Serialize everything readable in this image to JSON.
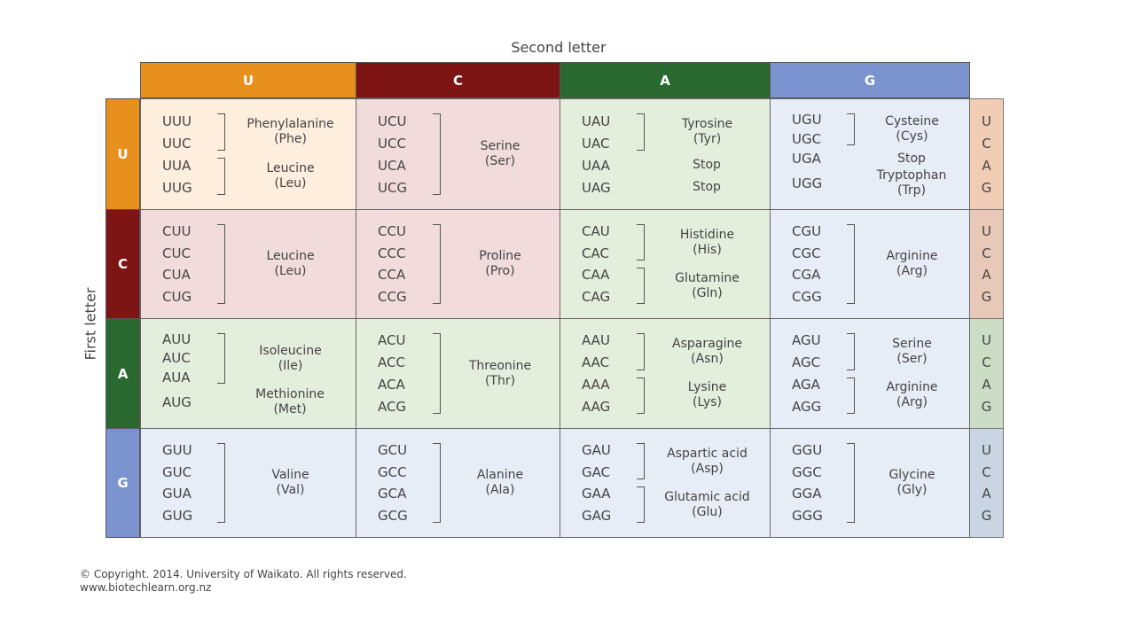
{
  "title_second": "Second letter",
  "title_first": "First letter",
  "bases": [
    "U",
    "C",
    "A",
    "G"
  ],
  "colors": {
    "header": [
      "#e8901e",
      "#7e1515",
      "#2a6a30",
      "#7b93cf"
    ],
    "cell": [
      "#fdeedd",
      "#f1dcdb",
      "#e4eedd",
      "#e7edf7"
    ],
    "third": [
      "#f2cdb5",
      "#e8c9b7",
      "#cbddc4",
      "#c9d5e3"
    ]
  },
  "cells": [
    [
      [
        {
          "codons": [
            "UUU",
            "UUC"
          ],
          "name": "Phenylalanine",
          "abbr": "(Phe)"
        },
        {
          "codons": [
            "UUA",
            "UUG"
          ],
          "name": "Leucine",
          "abbr": "(Leu)"
        }
      ],
      [
        {
          "codons": [
            "UCU",
            "UCC",
            "UCA",
            "UCG"
          ],
          "name": "Serine",
          "abbr": "(Ser)"
        }
      ],
      [
        {
          "codons": [
            "UAU",
            "UAC"
          ],
          "name": "Tyrosine",
          "abbr": "(Tyr)"
        },
        {
          "codons": [
            "UAA"
          ],
          "name": "Stop",
          "abbr": ""
        },
        {
          "codons": [
            "UAG"
          ],
          "name": "Stop",
          "abbr": ""
        }
      ],
      [
        {
          "codons": [
            "UGU",
            "UGC"
          ],
          "name": "Cysteine",
          "abbr": "(Cys)"
        },
        {
          "codons": [
            "UGA"
          ],
          "name": "Stop",
          "abbr": ""
        },
        {
          "codons": [
            "UGG"
          ],
          "name": "Tryptophan",
          "abbr": "(Trp)"
        }
      ]
    ],
    [
      [
        {
          "codons": [
            "CUU",
            "CUC",
            "CUA",
            "CUG"
          ],
          "name": "Leucine",
          "abbr": "(Leu)"
        }
      ],
      [
        {
          "codons": [
            "CCU",
            "CCC",
            "CCA",
            "CCG"
          ],
          "name": "Proline",
          "abbr": "(Pro)"
        }
      ],
      [
        {
          "codons": [
            "CAU",
            "CAC"
          ],
          "name": "Histidine",
          "abbr": "(His)"
        },
        {
          "codons": [
            "CAA",
            "CAG"
          ],
          "name": "Glutamine",
          "abbr": "(Gln)"
        }
      ],
      [
        {
          "codons": [
            "CGU",
            "CGC",
            "CGA",
            "CGG"
          ],
          "name": "Arginine",
          "abbr": "(Arg)"
        }
      ]
    ],
    [
      [
        {
          "codons": [
            "AUU",
            "AUC",
            "AUA"
          ],
          "name": "Isoleucine",
          "abbr": "(Ile)"
        },
        {
          "codons": [
            "AUG"
          ],
          "name": "Methionine",
          "abbr": "(Met)"
        }
      ],
      [
        {
          "codons": [
            "ACU",
            "ACC",
            "ACA",
            "ACG"
          ],
          "name": "Threonine",
          "abbr": "(Thr)"
        }
      ],
      [
        {
          "codons": [
            "AAU",
            "AAC"
          ],
          "name": "Asparagine",
          "abbr": "(Asn)"
        },
        {
          "codons": [
            "AAA",
            "AAG"
          ],
          "name": "Lysine",
          "abbr": "(Lys)"
        }
      ],
      [
        {
          "codons": [
            "AGU",
            "AGC"
          ],
          "name": "Serine",
          "abbr": "(Ser)"
        },
        {
          "codons": [
            "AGA",
            "AGG"
          ],
          "name": "Arginine",
          "abbr": "(Arg)"
        }
      ]
    ],
    [
      [
        {
          "codons": [
            "GUU",
            "GUC",
            "GUA",
            "GUG"
          ],
          "name": "Valine",
          "abbr": "(Val)"
        }
      ],
      [
        {
          "codons": [
            "GCU",
            "GCC",
            "GCA",
            "GCG"
          ],
          "name": "Alanine",
          "abbr": "(Ala)"
        }
      ],
      [
        {
          "codons": [
            "GAU",
            "GAC"
          ],
          "name": "Aspartic acid",
          "abbr": "(Asp)"
        },
        {
          "codons": [
            "GAA",
            "GAG"
          ],
          "name": "Glutamic acid",
          "abbr": "(Glu)"
        }
      ],
      [
        {
          "codons": [
            "GGU",
            "GGC",
            "GGA",
            "GGG"
          ],
          "name": "Glycine",
          "abbr": "(Gly)"
        }
      ]
    ]
  ],
  "copyright": "© Copyright. 2014. University of Waikato. All rights reserved.",
  "website": "www.biotechlearn.org.nz"
}
